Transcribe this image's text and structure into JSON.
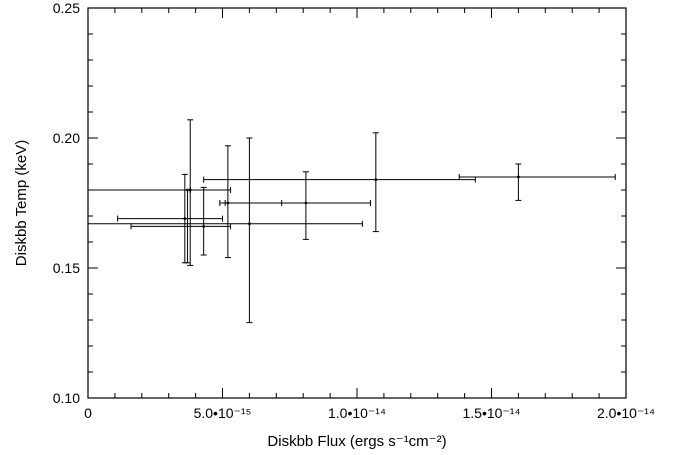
{
  "chart_data": {
    "type": "scatter",
    "title": "",
    "xlabel": "Diskbb Flux (ergs s⁻¹cm⁻²)",
    "ylabel": "Diskbb Temp (keV)",
    "xlim": [
      0,
      2e-14
    ],
    "ylim": [
      0.1,
      0.25
    ],
    "grid": false,
    "legend": "none",
    "x_ticks": [
      {
        "value": 0,
        "label": "0"
      },
      {
        "value": 5e-15,
        "label": "5.0•10⁻¹⁵"
      },
      {
        "value": 1e-14,
        "label": "1.0•10⁻¹⁴"
      },
      {
        "value": 1.5e-14,
        "label": "1.5•10⁻¹⁴"
      },
      {
        "value": 2e-14,
        "label": "2.0•10⁻¹⁴"
      }
    ],
    "y_ticks": [
      {
        "value": 0.1,
        "label": "0.10"
      },
      {
        "value": 0.15,
        "label": "0.15"
      },
      {
        "value": 0.2,
        "label": "0.20"
      },
      {
        "value": 0.25,
        "label": "0.25"
      }
    ],
    "points": [
      {
        "x": 3.6e-15,
        "y": 0.169,
        "xlo": 1.1e-15,
        "xhi": 5e-15,
        "ylo": 0.152,
        "yhi": 0.186
      },
      {
        "x": 3.7e-15,
        "y": 0.18,
        "xlo": 0.0,
        "xhi": 5.3e-15,
        "ylo": 0.152,
        "yhi": 0.18
      },
      {
        "x": 3.8e-15,
        "y": 0.18,
        "xlo": 3.8e-15,
        "xhi": 3.8e-15,
        "ylo": 0.151,
        "yhi": 0.207
      },
      {
        "x": 4.3e-15,
        "y": 0.166,
        "xlo": 1.6e-15,
        "xhi": 5.3e-15,
        "ylo": 0.155,
        "yhi": 0.181
      },
      {
        "x": 5.2e-15,
        "y": 0.175,
        "xlo": 4.9e-15,
        "xhi": 7.2e-15,
        "ylo": 0.154,
        "yhi": 0.197
      },
      {
        "x": 6e-15,
        "y": 0.167,
        "xlo": 0.0,
        "xhi": 1.02e-14,
        "ylo": 0.129,
        "yhi": 0.2
      },
      {
        "x": 8.1e-15,
        "y": 0.175,
        "xlo": 5.1e-15,
        "xhi": 1.05e-14,
        "ylo": 0.161,
        "yhi": 0.187
      },
      {
        "x": 1.07e-14,
        "y": 0.184,
        "xlo": 4.3e-15,
        "xhi": 1.44e-14,
        "ylo": 0.164,
        "yhi": 0.202
      },
      {
        "x": 1.6e-14,
        "y": 0.185,
        "xlo": 1.38e-14,
        "xhi": 1.96e-14,
        "ylo": 0.176,
        "yhi": 0.19
      }
    ]
  }
}
